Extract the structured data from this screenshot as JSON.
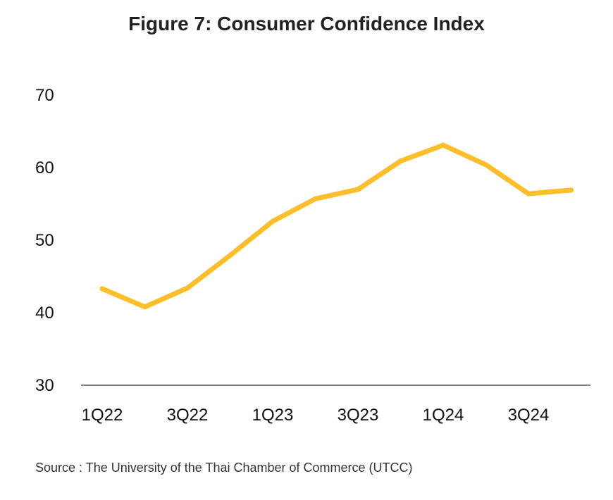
{
  "title": "Figure 7: Consumer Confidence Index",
  "source": "Source : The University of the Thai Chamber of Commerce (UTCC)",
  "chart_data": {
    "type": "line",
    "title": "Figure 7: Consumer Confidence Index",
    "categories": [
      "1Q22",
      "2Q22",
      "3Q22",
      "4Q22",
      "1Q23",
      "2Q23",
      "3Q23",
      "4Q23",
      "1Q24",
      "2Q24",
      "3Q24",
      "4Q24"
    ],
    "x_tick_labels": [
      "1Q22",
      "3Q22",
      "1Q23",
      "3Q23",
      "1Q24",
      "3Q24"
    ],
    "y_tick_labels": [
      "30",
      "40",
      "50",
      "60",
      "70"
    ],
    "series": [
      {
        "values": [
          43.3,
          40.8,
          43.4,
          47.9,
          52.6,
          55.7,
          57.0,
          60.9,
          63.1,
          60.4,
          56.4,
          56.9
        ]
      }
    ],
    "ylim": [
      30,
      70
    ],
    "grid": false,
    "legend": "none",
    "colors": {
      "line": "#FDBE2C",
      "axis": "#7f7f7f"
    }
  }
}
